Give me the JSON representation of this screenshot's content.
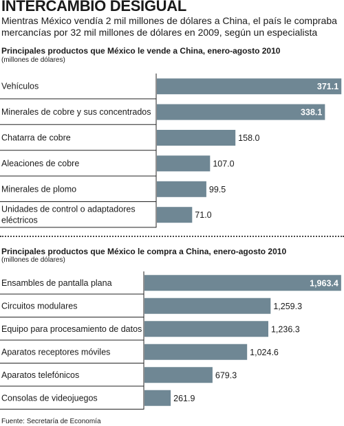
{
  "header": {
    "title": "INTERCAMBIO DESIGUAL",
    "subtitle": "Mientras México vendía 2 mil millones de dólares a China, el país le compraba mercancías por 32 mil millones de dólares en 2009, según un especialista"
  },
  "source": "Fuente: Secretaría de Economía",
  "colors": {
    "bar": "#6f8794",
    "row_line": "#222222"
  },
  "chart_data": [
    {
      "type": "bar",
      "orientation": "horizontal",
      "title": "Principales productos que México le vende a China,  enero-agosto 2010",
      "unit": "(millones de dólares)",
      "categories": [
        "Vehículos",
        "Minerales de cobre y sus concentrados",
        "Chatarra de cobre",
        "Aleaciones de cobre",
        "Minerales de plomo",
        [
          "Unidades de control o adaptadores",
          "eléctricos"
        ]
      ],
      "values": [
        371.1,
        338.1,
        158.0,
        107.0,
        99.5,
        71.0
      ],
      "labels": [
        "371.1",
        "338.1",
        "158.0",
        "107.0",
        "99.5",
        "71.0"
      ],
      "xlim": [
        0,
        375
      ]
    },
    {
      "type": "bar",
      "orientation": "horizontal",
      "title": "Principales productos que México le compra a China,  enero-agosto 2010",
      "unit": "(millones de dólares)",
      "categories": [
        "Ensambles de pantalla plana",
        "Circuitos modulares",
        "Equipo para procesamiento de datos",
        "Aparatos receptores móviles",
        "Aparatos telefónicos",
        "Consolas de videojuegos"
      ],
      "values": [
        1963.4,
        1259.3,
        1236.3,
        1024.6,
        679.3,
        261.9
      ],
      "labels": [
        "1,963.4",
        "1,259.3",
        "1,236.3",
        "1,024.6",
        "679.3",
        "261.9"
      ],
      "xlim": [
        0,
        1985
      ]
    }
  ]
}
